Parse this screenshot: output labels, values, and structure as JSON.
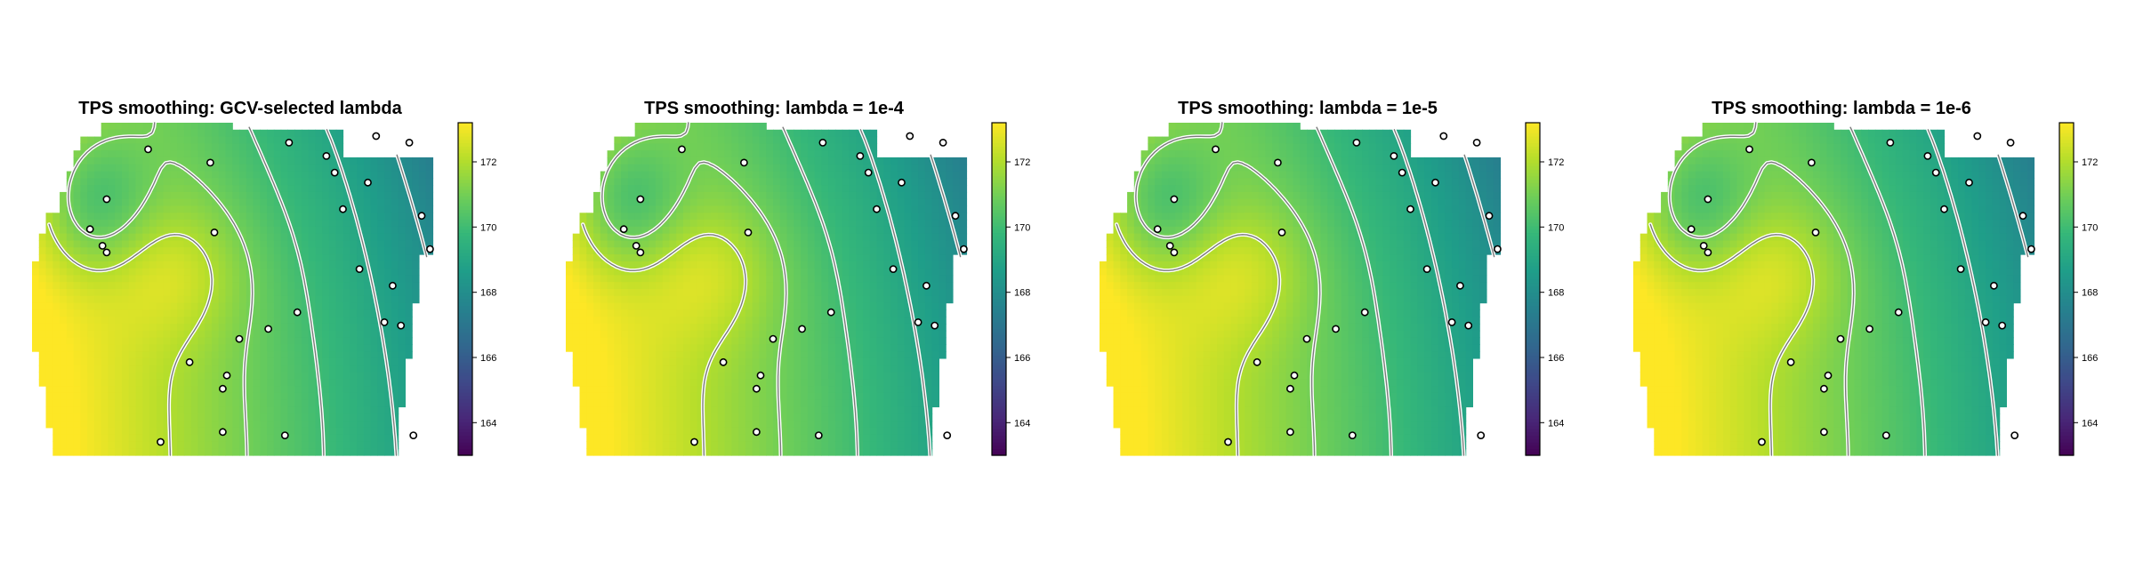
{
  "colors": {
    "viridis": [
      "#440154",
      "#482878",
      "#3e4989",
      "#31688e",
      "#26828e",
      "#1f9e89",
      "#35b779",
      "#6ece58",
      "#b5de2b",
      "#fde725"
    ],
    "contour_line": "#ffffff",
    "contour_core": "#7a7a7a",
    "point_fill": "#ffffff",
    "point_stroke": "#000000"
  },
  "chart_data": [
    {
      "type": "heatmap",
      "title": "TPS smoothing: GCV-selected lambda",
      "colorbar": {
        "min": 163,
        "max": 173.2,
        "ticks": [
          164,
          166,
          168,
          170,
          172
        ],
        "tick_labels": [
          "164",
          "166",
          "168",
          "170",
          "172"
        ]
      },
      "contour_levels": [
        164,
        165,
        166,
        167,
        168,
        169,
        170,
        171,
        172
      ],
      "observation_count": 30
    },
    {
      "type": "heatmap",
      "title": "TPS smoothing: lambda = 1e-4",
      "colorbar": {
        "min": 163,
        "max": 173.2,
        "ticks": [
          164,
          166,
          168,
          170,
          172
        ],
        "tick_labels": [
          "164",
          "166",
          "168",
          "170",
          "172"
        ]
      },
      "contour_levels": [
        164,
        165,
        166,
        167,
        168,
        169,
        170,
        171,
        172
      ],
      "observation_count": 30
    },
    {
      "type": "heatmap",
      "title": "TPS smoothing: lambda = 1e-5",
      "colorbar": {
        "min": 163,
        "max": 173.2,
        "ticks": [
          164,
          166,
          168,
          170,
          172
        ],
        "tick_labels": [
          "164",
          "166",
          "168",
          "170",
          "172"
        ]
      },
      "contour_levels": [
        164,
        165,
        166,
        167,
        168,
        169,
        170,
        171,
        172
      ],
      "observation_count": 30
    },
    {
      "type": "heatmap",
      "title": "TPS smoothing: lambda = 1e-6",
      "colorbar": {
        "min": 163,
        "max": 173.2,
        "ticks": [
          164,
          166,
          168,
          170,
          172
        ],
        "tick_labels": [
          "164",
          "166",
          "168",
          "170",
          "172"
        ]
      },
      "contour_levels": [
        164,
        165,
        166,
        167,
        168,
        169,
        170,
        171,
        172
      ],
      "observation_count": 30
    }
  ]
}
